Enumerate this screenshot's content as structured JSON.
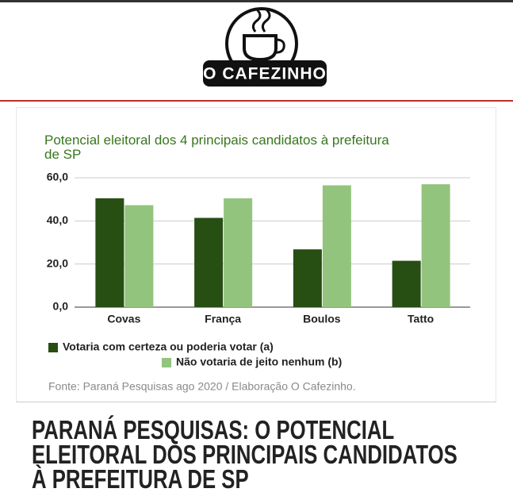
{
  "logo": {
    "text": "O CAFEZINHO"
  },
  "chart_data": {
    "type": "bar",
    "title": "Potencial eleitoral dos 4 principais candidatos à prefeitura de SP",
    "categories": [
      "Covas",
      "França",
      "Boulos",
      "Tatto"
    ],
    "series": [
      {
        "name": "Votaria com certeza ou poderia votar (a)",
        "color": "#274e13",
        "values": [
          50.5,
          41.4,
          26.8,
          21.5
        ]
      },
      {
        "name": "Não votaria de jeito nenhum (b)",
        "color": "#93c47d",
        "values": [
          47.3,
          50.5,
          56.5,
          57.0
        ]
      }
    ],
    "ylim": [
      0,
      60
    ],
    "yticks": [
      {
        "value": 0,
        "label": "0,0"
      },
      {
        "value": 20,
        "label": "20,0"
      },
      {
        "value": 40,
        "label": "40,0"
      },
      {
        "value": 60,
        "label": "60,0"
      }
    ],
    "grid": true,
    "source": "Fonte: Paraná Pesquisas ago 2020 / Elaboração O Cafezinho."
  },
  "article": {
    "headline": "PARANÁ PESQUISAS: O POTENCIAL ELEITORAL DOS PRINCIPAIS CANDIDATOS À PREFEITURA DE SP"
  }
}
